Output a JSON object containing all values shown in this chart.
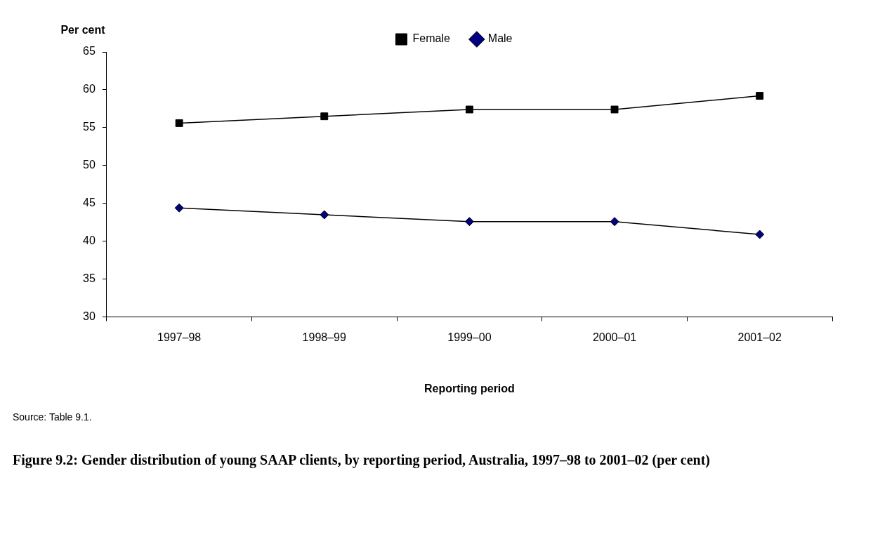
{
  "chart_data": {
    "type": "line",
    "title": "Figure 9.2: Gender distribution of young SAAP clients, by reporting period, Australia, 1997–98 to 2001–02 (per cent)",
    "xlabel": "Reporting period",
    "ylabel": "Per cent",
    "categories": [
      "1997–98",
      "1998–99",
      "1999–00",
      "2000–01",
      "2001–02"
    ],
    "series": [
      {
        "name": "Female",
        "color": "#000000",
        "marker": "square",
        "values": [
          55.6,
          56.5,
          57.4,
          57.4,
          59.2
        ]
      },
      {
        "name": "Male",
        "color": "#000080",
        "marker": "diamond",
        "values": [
          44.4,
          43.5,
          42.6,
          42.6,
          40.9
        ]
      }
    ],
    "ylim": [
      30,
      65
    ],
    "yticks": [
      30,
      35,
      40,
      45,
      50,
      55,
      60,
      65
    ],
    "grid": false,
    "legend": "top",
    "line_style": "solid",
    "annotations": [
      "Source: Table 9.1."
    ]
  }
}
